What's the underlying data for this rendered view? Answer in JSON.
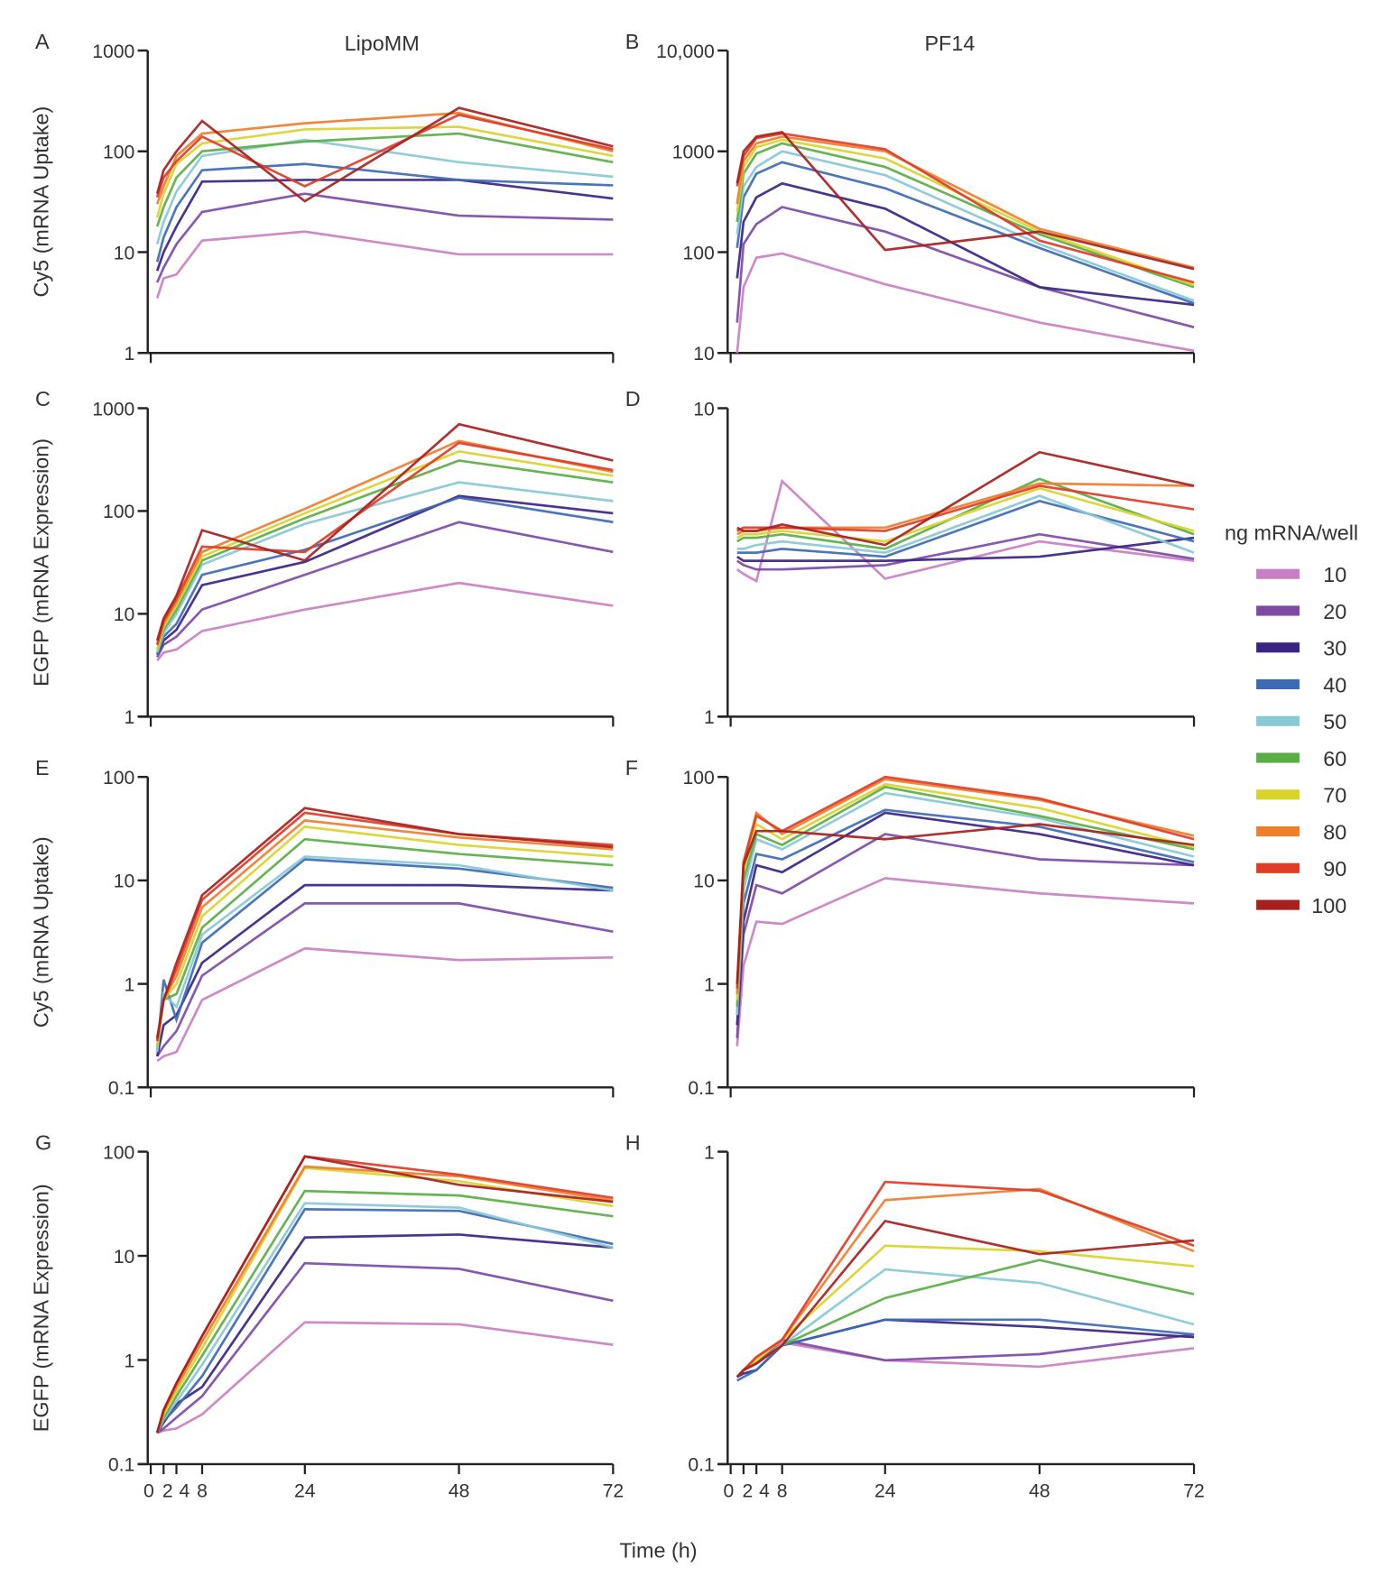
{
  "figure": {
    "xlabel": "Time (h)",
    "legend_title": "ng mRNA/well",
    "column_titles": [
      "LipoMM",
      "PF14"
    ]
  },
  "chart_data": {
    "type": "line",
    "x": [
      1,
      2,
      4,
      8,
      24,
      48,
      72
    ],
    "x_ticks": [
      "0",
      "2",
      "4",
      "8",
      "24",
      "48",
      "72"
    ],
    "x_tick_values": [
      0,
      2,
      4,
      8,
      24,
      48,
      72
    ],
    "xlim": [
      0,
      72
    ],
    "series_names": [
      "10",
      "20",
      "30",
      "40",
      "50",
      "60",
      "70",
      "80",
      "90",
      "100"
    ],
    "colors": [
      "#c97fc3",
      "#7d4aa6",
      "#3a2483",
      "#3e6ab4",
      "#88c9d6",
      "#5aae45",
      "#d8d42c",
      "#ee7e2c",
      "#e03c26",
      "#a6211e"
    ],
    "legend_placement": "right",
    "panels": [
      {
        "letter": "A",
        "ylabel": "Cy5 (mRNA Uptake)",
        "yscale": "log",
        "ylim": [
          1,
          1000
        ],
        "yticks": [
          "1",
          "10",
          "100",
          "1000"
        ],
        "series": [
          [
            3.5,
            5.5,
            6,
            13,
            16,
            9.5,
            9.5
          ],
          [
            5,
            7,
            12,
            25,
            38,
            23,
            21
          ],
          [
            6.5,
            10,
            18,
            50,
            52,
            52,
            34
          ],
          [
            8,
            14,
            28,
            65,
            75,
            52,
            46
          ],
          [
            12,
            20,
            40,
            90,
            130,
            78,
            56
          ],
          [
            18,
            28,
            55,
            100,
            125,
            150,
            78
          ],
          [
            22,
            38,
            75,
            120,
            165,
            175,
            90
          ],
          [
            30,
            45,
            90,
            150,
            190,
            240,
            100
          ],
          [
            35,
            55,
            80,
            140,
            45,
            230,
            105
          ],
          [
            38,
            65,
            100,
            200,
            32,
            270,
            112
          ]
        ]
      },
      {
        "letter": "B",
        "ylabel": "",
        "yscale": "log",
        "ylim": [
          10,
          10000
        ],
        "yticks": [
          "10",
          "100",
          "1000",
          "10,000"
        ],
        "series": [
          [
            10,
            45,
            88,
            97,
            48,
            20,
            10.5
          ],
          [
            20,
            120,
            190,
            280,
            160,
            45,
            18
          ],
          [
            55,
            200,
            350,
            480,
            270,
            45,
            30
          ],
          [
            110,
            350,
            600,
            780,
            430,
            110,
            31
          ],
          [
            150,
            450,
            700,
            1000,
            580,
            120,
            33
          ],
          [
            200,
            600,
            950,
            1200,
            700,
            150,
            45
          ],
          [
            250,
            700,
            1100,
            1300,
            850,
            160,
            47
          ],
          [
            300,
            800,
            1200,
            1400,
            1000,
            170,
            70
          ],
          [
            450,
            900,
            1350,
            1500,
            1050,
            130,
            50
          ],
          [
            480,
            1000,
            1400,
            1550,
            105,
            160,
            68
          ]
        ]
      },
      {
        "letter": "C",
        "ylabel": "EGFP (mRNA Expression)",
        "yscale": "log",
        "ylim": [
          1,
          1000
        ],
        "yticks": [
          "1",
          "10",
          "100",
          "1000"
        ],
        "series": [
          [
            3.5,
            4.2,
            4.5,
            6.8,
            11,
            20,
            12
          ],
          [
            3.8,
            5,
            6,
            11,
            24,
            78,
            40
          ],
          [
            4,
            5.5,
            7,
            19,
            32,
            140,
            95
          ],
          [
            4,
            6,
            8,
            24,
            42,
            135,
            78
          ],
          [
            4.2,
            6.5,
            10,
            30,
            75,
            190,
            125
          ],
          [
            4.5,
            7,
            11,
            33,
            85,
            310,
            190
          ],
          [
            4.5,
            7.5,
            12,
            36,
            95,
            380,
            220
          ],
          [
            5,
            8,
            13,
            40,
            105,
            480,
            240
          ],
          [
            5,
            8.5,
            14,
            45,
            40,
            460,
            250
          ],
          [
            5.5,
            9,
            15,
            65,
            33,
            700,
            310
          ]
        ]
      },
      {
        "letter": "D",
        "ylabel": "",
        "yscale": "log",
        "ylim": [
          1,
          10
        ],
        "yticks": [
          "1",
          "10"
        ],
        "series": [
          [
            3.0,
            2.9,
            2.75,
            5.8,
            2.8,
            3.7,
            3.2
          ],
          [
            3.2,
            3.1,
            3.0,
            3.0,
            3.1,
            3.9,
            3.25
          ],
          [
            3.3,
            3.2,
            3.2,
            3.2,
            3.2,
            3.3,
            3.8
          ],
          [
            3.4,
            3.4,
            3.4,
            3.5,
            3.3,
            5.0,
            3.7
          ],
          [
            3.5,
            3.5,
            3.6,
            3.7,
            3.4,
            5.2,
            3.4
          ],
          [
            3.7,
            3.8,
            3.8,
            3.9,
            3.5,
            5.9,
            3.9
          ],
          [
            3.8,
            3.9,
            3.9,
            4.0,
            3.7,
            5.5,
            4.0
          ],
          [
            3.9,
            4.0,
            4.0,
            4.1,
            4.1,
            5.7,
            5.6
          ],
          [
            4.0,
            4.1,
            4.1,
            4.1,
            4.0,
            5.6,
            4.7
          ],
          [
            4.1,
            4.0,
            4.0,
            4.2,
            3.6,
            7.2,
            5.6
          ]
        ]
      },
      {
        "letter": "E",
        "ylabel": "Cy5 (mRNA Uptake)",
        "yscale": "log",
        "ylim": [
          0.1,
          100
        ],
        "yticks": [
          "0.1",
          "1",
          "10",
          "100"
        ],
        "series": [
          [
            0.18,
            0.2,
            0.22,
            0.7,
            2.2,
            1.7,
            1.8
          ],
          [
            0.2,
            0.25,
            0.35,
            1.2,
            6,
            6,
            3.2
          ],
          [
            0.2,
            0.4,
            0.5,
            1.6,
            9,
            9,
            8
          ],
          [
            0.22,
            1.1,
            0.45,
            2.5,
            16,
            13,
            8.5
          ],
          [
            0.22,
            0.8,
            0.6,
            3,
            17,
            14,
            8
          ],
          [
            0.25,
            0.7,
            0.8,
            3.5,
            25,
            18,
            14
          ],
          [
            0.25,
            0.7,
            1,
            4.5,
            33,
            22,
            17
          ],
          [
            0.28,
            0.7,
            1.2,
            5.5,
            38,
            26,
            20
          ],
          [
            0.28,
            0.7,
            1.4,
            6.5,
            45,
            28,
            22
          ],
          [
            0.3,
            0.7,
            1.6,
            7.2,
            50,
            28,
            21
          ]
        ]
      },
      {
        "letter": "F",
        "ylabel": "",
        "yscale": "log",
        "ylim": [
          0.1,
          100
        ],
        "yticks": [
          "0.1",
          "1",
          "10",
          "100"
        ],
        "series": [
          [
            0.25,
            1.5,
            4,
            3.8,
            10.5,
            7.5,
            6
          ],
          [
            0.3,
            3,
            9,
            7.5,
            28,
            16,
            14
          ],
          [
            0.4,
            4,
            14,
            12,
            45,
            28,
            14
          ],
          [
            0.5,
            6,
            18,
            16,
            48,
            33,
            15
          ],
          [
            0.5,
            8,
            25,
            20,
            70,
            40,
            17
          ],
          [
            0.6,
            10,
            28,
            22,
            80,
            42,
            20
          ],
          [
            0.7,
            12,
            35,
            25,
            85,
            50,
            21
          ],
          [
            0.8,
            15,
            45,
            28,
            95,
            60,
            27
          ],
          [
            0.9,
            15,
            42,
            30,
            100,
            62,
            25
          ],
          [
            1.0,
            14,
            30,
            30,
            25,
            35,
            22
          ]
        ]
      },
      {
        "letter": "G",
        "ylabel": "EGFP (mRNA Expression)",
        "yscale": "log",
        "ylim": [
          0.1,
          100
        ],
        "yticks": [
          "0.1",
          "1",
          "10",
          "100"
        ],
        "series": [
          [
            0.2,
            0.21,
            0.22,
            0.3,
            2.3,
            2.2,
            1.4
          ],
          [
            0.2,
            0.22,
            0.28,
            0.45,
            8.5,
            7.5,
            3.7
          ],
          [
            0.2,
            0.25,
            0.38,
            0.55,
            15,
            16,
            12
          ],
          [
            0.2,
            0.26,
            0.35,
            0.7,
            28,
            27,
            13
          ],
          [
            0.2,
            0.27,
            0.4,
            0.9,
            32,
            29,
            12
          ],
          [
            0.2,
            0.28,
            0.45,
            1.1,
            42,
            38,
            24
          ],
          [
            0.2,
            0.3,
            0.5,
            1.3,
            70,
            52,
            30
          ],
          [
            0.2,
            0.32,
            0.55,
            1.5,
            72,
            58,
            34
          ],
          [
            0.2,
            0.33,
            0.6,
            1.7,
            90,
            60,
            36
          ],
          [
            0.2,
            0.33,
            0.6,
            1.7,
            90,
            48,
            33
          ]
        ]
      },
      {
        "letter": "H",
        "ylabel": "",
        "yscale": "log",
        "ylim": [
          0.1,
          1
        ],
        "yticks": [
          "0.1",
          "1"
        ],
        "series": [
          [
            0.19,
            0.2,
            0.21,
            0.245,
            0.215,
            0.205,
            0.235
          ],
          [
            0.19,
            0.2,
            0.21,
            0.25,
            0.215,
            0.225,
            0.26
          ],
          [
            0.19,
            0.195,
            0.2,
            0.24,
            0.29,
            0.275,
            0.255
          ],
          [
            0.185,
            0.19,
            0.2,
            0.24,
            0.29,
            0.29,
            0.26
          ],
          [
            0.19,
            0.2,
            0.21,
            0.24,
            0.42,
            0.38,
            0.28
          ],
          [
            0.19,
            0.2,
            0.21,
            0.24,
            0.34,
            0.45,
            0.35
          ],
          [
            0.19,
            0.2,
            0.215,
            0.25,
            0.5,
            0.48,
            0.43
          ],
          [
            0.19,
            0.2,
            0.22,
            0.25,
            0.7,
            0.76,
            0.48
          ],
          [
            0.19,
            0.2,
            0.22,
            0.25,
            0.8,
            0.75,
            0.5
          ],
          [
            0.19,
            0.2,
            0.21,
            0.24,
            0.6,
            0.47,
            0.52
          ]
        ]
      }
    ]
  }
}
